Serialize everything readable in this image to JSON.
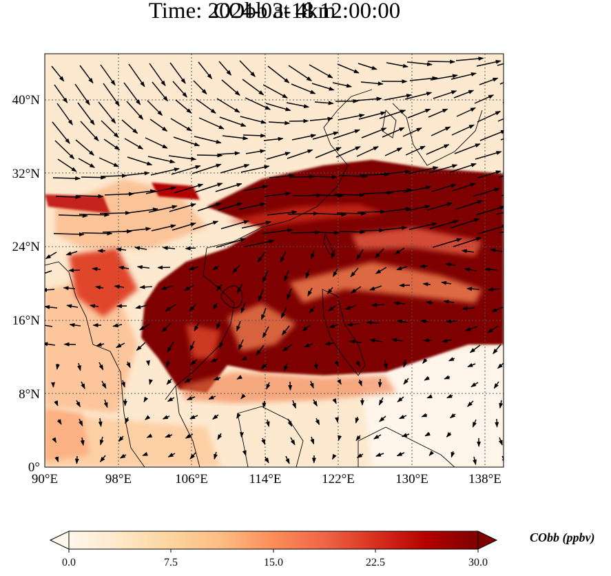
{
  "title_line1": "CObb at 4km",
  "title_line2": "Time: 2024-03-18 12:00:00",
  "map": {
    "lon_range": [
      90,
      140
    ],
    "lat_range": [
      0,
      45
    ],
    "lon_ticks": [
      "90°E",
      "98°E",
      "106°E",
      "114°E",
      "122°E",
      "130°E",
      "138°E"
    ],
    "lat_ticks": [
      "0°",
      "8°N",
      "16°N",
      "24°N",
      "32°N",
      "40°N"
    ],
    "gridlines": "dotted",
    "field_description": "high CObb plume over Indochina, South China Sea and western Pacific; wind vectors at 4km"
  },
  "colorbar": {
    "label": "CObb (ppbv)",
    "ticks": [
      "0.0",
      "7.5",
      "15.0",
      "22.5",
      "30.0"
    ],
    "min": 0,
    "max": 30,
    "extend": "both",
    "colormap": [
      "#fff7ec",
      "#fee8c8",
      "#fdd49e",
      "#fdbb84",
      "#fc8d59",
      "#ef6548",
      "#d7301f",
      "#b30000",
      "#7f0000"
    ]
  }
}
